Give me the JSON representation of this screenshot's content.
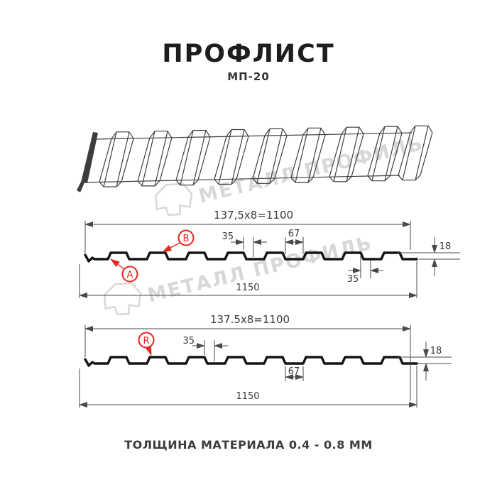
{
  "page": {
    "title": "ПРОФЛИСТ",
    "subtitle": "МП-20",
    "footer": "ТОЛЩИНА МАТЕРИАЛА 0.4 - 0.8 ММ",
    "watermark_text": "МЕТАЛЛ ПРОФИЛЬ"
  },
  "colors": {
    "accent_red": "#e52620",
    "profile_stroke": "#151515",
    "dimension_stroke": "#4a4a4a",
    "watermark_gray": "#d8d8d8"
  },
  "profile_top": {
    "pitch_label": "137,5x8=1100",
    "total_width_label": "1150",
    "rib_top_width_label": "35",
    "flat_width_label": "67",
    "rib_bottom_width_label": "35",
    "height_label": "18",
    "marker_a": "A",
    "marker_b": "B"
  },
  "profile_bottom": {
    "pitch_label": "137.5x8=1100",
    "total_width_label": "1150",
    "rib_top_width_label": "35",
    "flat_width_label": "67",
    "height_label": "18",
    "marker_r": "R"
  }
}
